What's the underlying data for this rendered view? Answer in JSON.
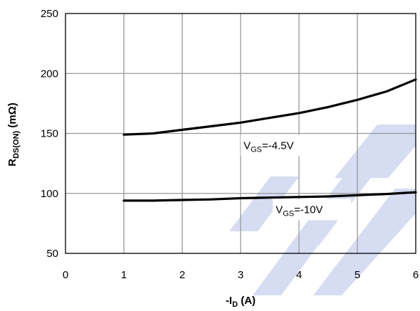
{
  "chart_data": {
    "type": "line",
    "xlabel": {
      "main": "-I",
      "sub": "D",
      "tail": " (A)"
    },
    "ylabel": {
      "main": "R",
      "sub": "DS(ON)",
      "tail": " (mΩ)"
    },
    "xlim": [
      0,
      6
    ],
    "ylim": [
      50,
      250
    ],
    "xticks": [
      0,
      1,
      2,
      3,
      4,
      5,
      6
    ],
    "yticks": [
      50,
      100,
      150,
      200,
      250
    ],
    "grid": true,
    "series": [
      {
        "annotation": {
          "main": "V",
          "sub": "GS",
          "tail": "=-4.5V"
        },
        "x": [
          1,
          1.5,
          2,
          2.5,
          3,
          3.5,
          4,
          4.5,
          5,
          5.5,
          6
        ],
        "y": [
          149,
          150,
          153,
          156,
          159,
          163,
          167,
          172,
          178,
          185,
          195
        ]
      },
      {
        "annotation": {
          "main": "V",
          "sub": "GS",
          "tail": "=-10V"
        },
        "x": [
          1,
          1.5,
          2,
          2.5,
          3,
          3.5,
          4,
          4.5,
          5,
          5.5,
          6
        ],
        "y": [
          94,
          94,
          94.5,
          95,
          96,
          96.5,
          97,
          97.5,
          98.5,
          99.5,
          101
        ]
      }
    ],
    "watermark_color": "#d6dcf2",
    "line_color": "#000000",
    "grid_color": "#999999"
  }
}
